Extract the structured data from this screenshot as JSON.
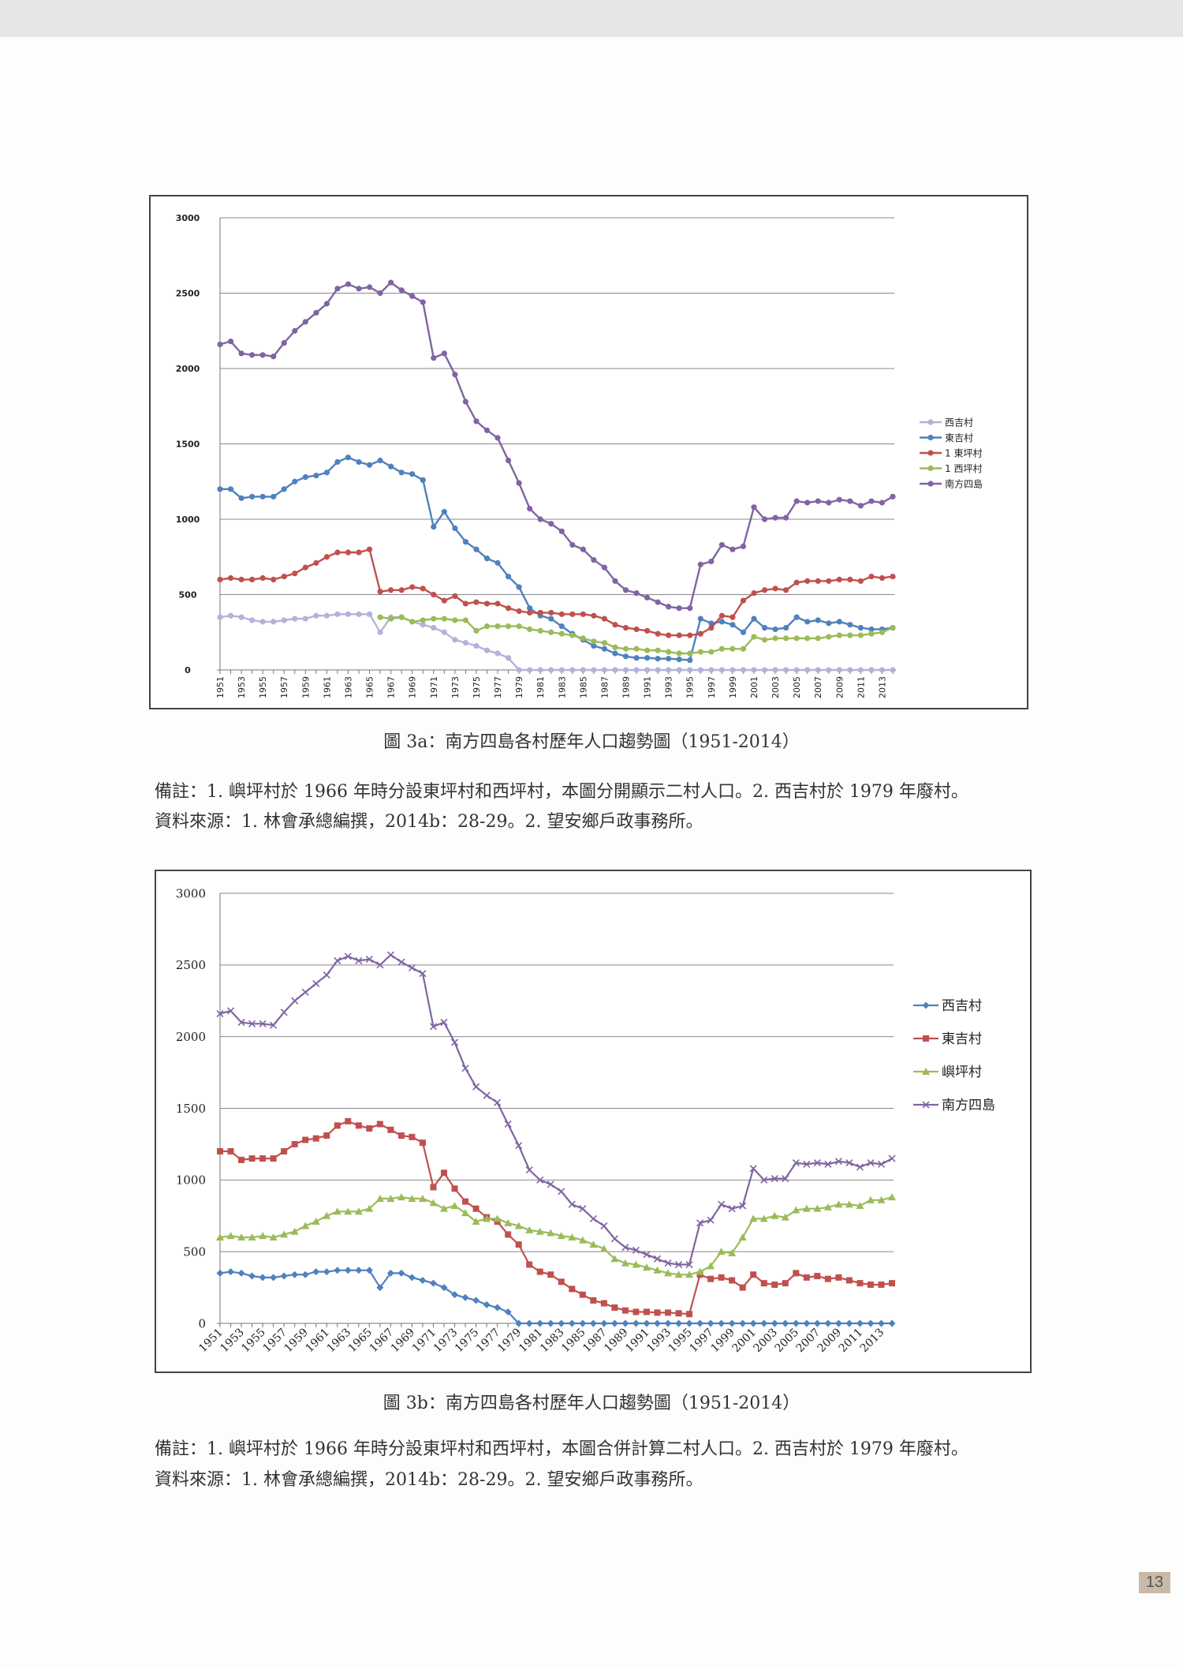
{
  "page_number": "13",
  "figures": [
    {
      "caption": "圖 3a：南方四島各村歷年人口趨勢圖（1951-2014）",
      "note": "備註：1. 嶼坪村於 1966 年時分設東坪村和西坪村，本圖分開顯示二村人口。2. 西吉村於 1979 年廢村。",
      "source": "資料來源：1. 林會承總編撰，2014b：28-29。2. 望安鄉戶政事務所。"
    },
    {
      "caption": "圖 3b：南方四島各村歷年人口趨勢圖（1951-2014）",
      "note": "備註：1. 嶼坪村於 1966 年時分設東坪村和西坪村，本圖合併計算二村人口。2. 西吉村於 1979 年廢村。",
      "source": "資料來源：1. 林會承總編撰，2014b：28-29。2. 望安鄉戶政事務所。"
    }
  ],
  "chart_data": [
    {
      "type": "line",
      "title": "圖 3a：南方四島各村歷年人口趨勢圖（1951-2014）",
      "xlabel": "",
      "ylabel": "",
      "x_start": 1951,
      "x_end": 2014,
      "x_tick_step": 2,
      "ylim": [
        0,
        3000
      ],
      "yticks": [
        0,
        500,
        1000,
        1500,
        2000,
        2500,
        3000
      ],
      "grid": true,
      "legend": "right",
      "series": [
        {
          "name": "西吉村",
          "color": "#b3b3d9",
          "marker": "circle",
          "values": [
            350,
            360,
            350,
            330,
            320,
            320,
            330,
            340,
            340,
            360,
            360,
            370,
            370,
            370,
            370,
            250,
            350,
            350,
            320,
            300,
            280,
            250,
            200,
            180,
            160,
            130,
            110,
            80,
            0,
            0,
            0,
            0,
            0,
            0,
            0,
            0,
            0,
            0,
            0,
            0,
            0,
            0,
            0,
            0,
            0,
            0,
            0,
            0,
            0,
            0,
            0,
            0,
            0,
            0,
            0,
            0,
            0,
            0,
            0,
            0,
            0,
            0,
            0,
            0
          ]
        },
        {
          "name": "東吉村",
          "color": "#4f81bd",
          "marker": "circle",
          "values": [
            1200,
            1200,
            1140,
            1150,
            1150,
            1150,
            1200,
            1250,
            1280,
            1290,
            1310,
            1380,
            1410,
            1380,
            1360,
            1390,
            1350,
            1310,
            1300,
            1260,
            950,
            1050,
            940,
            850,
            800,
            740,
            710,
            620,
            550,
            410,
            360,
            340,
            290,
            240,
            200,
            160,
            140,
            110,
            90,
            80,
            80,
            75,
            75,
            70,
            65,
            340,
            310,
            320,
            300,
            250,
            340,
            280,
            270,
            280,
            350,
            320,
            330,
            310,
            320,
            300,
            280,
            270,
            270,
            280
          ]
        },
        {
          "name": "1 東坪村",
          "color": "#c0504d",
          "marker": "circle",
          "values": [
            600,
            610,
            600,
            600,
            610,
            600,
            620,
            640,
            680,
            710,
            750,
            780,
            780,
            780,
            800,
            520,
            530,
            530,
            550,
            540,
            500,
            460,
            490,
            440,
            450,
            440,
            440,
            410,
            390,
            380,
            380,
            380,
            370,
            370,
            370,
            360,
            340,
            300,
            280,
            270,
            260,
            240,
            230,
            230,
            230,
            240,
            280,
            360,
            350,
            460,
            510,
            530,
            540,
            530,
            580,
            590,
            590,
            590,
            600,
            600,
            590,
            620,
            610,
            620
          ]
        },
        {
          "name": "1 西坪村",
          "color": "#9bbb59",
          "marker": "circle",
          "values": [
            null,
            null,
            null,
            null,
            null,
            null,
            null,
            null,
            null,
            null,
            null,
            null,
            null,
            null,
            null,
            350,
            340,
            350,
            320,
            330,
            340,
            340,
            330,
            330,
            260,
            290,
            290,
            290,
            290,
            270,
            260,
            250,
            240,
            230,
            210,
            190,
            180,
            150,
            140,
            140,
            130,
            130,
            120,
            110,
            110,
            120,
            120,
            140,
            140,
            140,
            220,
            200,
            210,
            210,
            210,
            210,
            210,
            220,
            230,
            230,
            230,
            240,
            250,
            280
          ]
        },
        {
          "name": "南方四島",
          "color": "#8064a2",
          "marker": "circle",
          "values": [
            2160,
            2180,
            2100,
            2090,
            2090,
            2080,
            2170,
            2250,
            2310,
            2370,
            2430,
            2530,
            2560,
            2530,
            2540,
            2500,
            2570,
            2520,
            2480,
            2440,
            2070,
            2100,
            1960,
            1780,
            1650,
            1590,
            1540,
            1390,
            1240,
            1070,
            1000,
            970,
            920,
            830,
            800,
            730,
            680,
            590,
            530,
            510,
            480,
            450,
            420,
            410,
            410,
            700,
            720,
            830,
            800,
            820,
            1080,
            1000,
            1010,
            1010,
            1120,
            1110,
            1120,
            1110,
            1130,
            1120,
            1090,
            1120,
            1110,
            1150
          ]
        }
      ]
    },
    {
      "type": "line",
      "title": "圖 3b：南方四島各村歷年人口趨勢圖（1951-2014）",
      "xlabel": "",
      "ylabel": "",
      "x_start": 1951,
      "x_end": 2014,
      "x_tick_step": 2,
      "ylim": [
        0,
        3000
      ],
      "yticks": [
        0,
        500,
        1000,
        1500,
        2000,
        2500,
        3000
      ],
      "grid": true,
      "legend": "right",
      "series": [
        {
          "name": "西吉村",
          "color": "#4f81bd",
          "marker": "diamond",
          "values": [
            350,
            360,
            350,
            330,
            320,
            320,
            330,
            340,
            340,
            360,
            360,
            370,
            370,
            370,
            370,
            250,
            350,
            350,
            320,
            300,
            280,
            250,
            200,
            180,
            160,
            130,
            110,
            80,
            0,
            0,
            0,
            0,
            0,
            0,
            0,
            0,
            0,
            0,
            0,
            0,
            0,
            0,
            0,
            0,
            0,
            0,
            0,
            0,
            0,
            0,
            0,
            0,
            0,
            0,
            0,
            0,
            0,
            0,
            0,
            0,
            0,
            0,
            0,
            0
          ]
        },
        {
          "name": "東吉村",
          "color": "#c0504d",
          "marker": "square",
          "values": [
            1200,
            1200,
            1140,
            1150,
            1150,
            1150,
            1200,
            1250,
            1280,
            1290,
            1310,
            1380,
            1410,
            1380,
            1360,
            1390,
            1350,
            1310,
            1300,
            1260,
            950,
            1050,
            940,
            850,
            800,
            740,
            710,
            620,
            550,
            410,
            360,
            340,
            290,
            240,
            200,
            160,
            140,
            110,
            90,
            80,
            80,
            75,
            75,
            70,
            65,
            340,
            310,
            320,
            300,
            250,
            340,
            280,
            270,
            280,
            350,
            320,
            330,
            310,
            320,
            300,
            280,
            270,
            270,
            280
          ]
        },
        {
          "name": "嶼坪村",
          "color": "#9bbb59",
          "marker": "triangle",
          "values": [
            600,
            610,
            600,
            600,
            610,
            600,
            620,
            640,
            680,
            710,
            750,
            780,
            780,
            780,
            800,
            870,
            870,
            880,
            870,
            870,
            840,
            800,
            820,
            770,
            710,
            730,
            730,
            700,
            680,
            650,
            640,
            630,
            610,
            600,
            580,
            550,
            520,
            450,
            420,
            410,
            390,
            370,
            350,
            340,
            340,
            360,
            400,
            500,
            490,
            600,
            730,
            730,
            750,
            740,
            790,
            800,
            800,
            810,
            830,
            830,
            820,
            860,
            860,
            880
          ]
        },
        {
          "name": "南方四島",
          "color": "#8064a2",
          "marker": "x",
          "values": [
            2160,
            2180,
            2100,
            2090,
            2090,
            2080,
            2170,
            2250,
            2310,
            2370,
            2430,
            2530,
            2560,
            2530,
            2540,
            2500,
            2570,
            2520,
            2480,
            2440,
            2070,
            2100,
            1960,
            1780,
            1650,
            1590,
            1540,
            1390,
            1240,
            1070,
            1000,
            970,
            920,
            830,
            800,
            730,
            680,
            590,
            530,
            510,
            480,
            450,
            420,
            410,
            410,
            700,
            720,
            830,
            800,
            820,
            1080,
            1000,
            1010,
            1010,
            1120,
            1110,
            1120,
            1110,
            1130,
            1120,
            1090,
            1120,
            1110,
            1150
          ]
        }
      ]
    }
  ]
}
